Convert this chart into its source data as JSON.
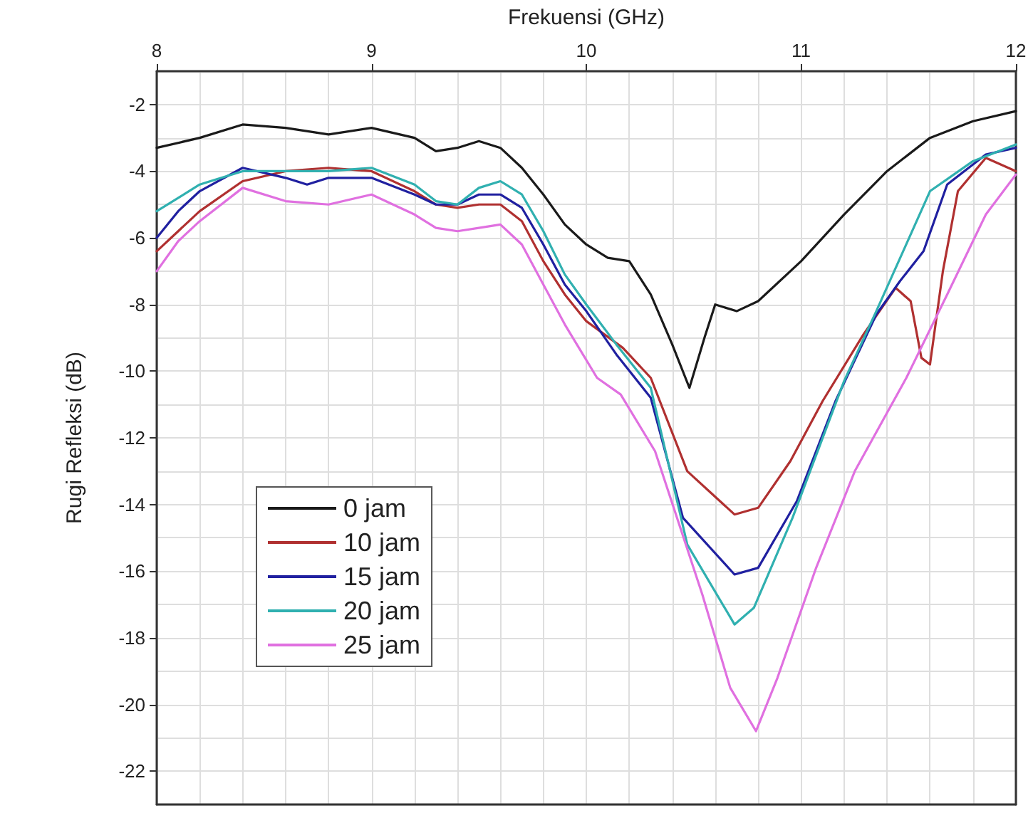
{
  "chart_data": {
    "type": "line",
    "xlabel": "Frekuensi (GHz)",
    "ylabel": "Rugi Refleksi (dB)",
    "xlim": [
      8,
      12
    ],
    "xticks": [
      8,
      9,
      10,
      11,
      12
    ],
    "ylim": [
      -23,
      -1
    ],
    "yticks": [
      -2,
      -4,
      -6,
      -8,
      -10,
      -12,
      -14,
      -16,
      -18,
      -20,
      -22
    ],
    "grid": true,
    "legend": "bottom left",
    "marker": "none",
    "line_style": "solid",
    "series": [
      {
        "name": "0 jam",
        "color": "#1a1a1a",
        "x": [
          8.0,
          8.2,
          8.4,
          8.6,
          8.8,
          9.0,
          9.2,
          9.3,
          9.4,
          9.5,
          9.6,
          9.7,
          9.8,
          9.9,
          10.0,
          10.1,
          10.2,
          10.3,
          10.4,
          10.48,
          10.55,
          10.6,
          10.7,
          10.8,
          11.0,
          11.2,
          11.4,
          11.6,
          11.8,
          12.0
        ],
        "values": [
          -3.3,
          -3.0,
          -2.6,
          -2.7,
          -2.9,
          -2.7,
          -3.0,
          -3.4,
          -3.3,
          -3.1,
          -3.3,
          -3.9,
          -4.7,
          -5.6,
          -6.2,
          -6.6,
          -6.7,
          -7.7,
          -9.2,
          -10.5,
          -9.0,
          -8.0,
          -8.2,
          -7.9,
          -6.7,
          -5.3,
          -4.0,
          -3.0,
          -2.5,
          -2.2
        ]
      },
      {
        "name": "10 jam",
        "color": "#b03030",
        "x": [
          8.0,
          8.1,
          8.2,
          8.4,
          8.6,
          8.8,
          9.0,
          9.2,
          9.3,
          9.4,
          9.5,
          9.6,
          9.7,
          9.8,
          9.9,
          10.0,
          10.17,
          10.3,
          10.47,
          10.69,
          10.8,
          10.95,
          11.1,
          11.29,
          11.44,
          11.51,
          11.56,
          11.6,
          11.66,
          11.73,
          11.86,
          12.0
        ],
        "values": [
          -6.4,
          -5.8,
          -5.2,
          -4.3,
          -4.0,
          -3.9,
          -4.0,
          -4.6,
          -5.0,
          -5.1,
          -5.0,
          -5.0,
          -5.5,
          -6.7,
          -7.7,
          -8.5,
          -9.3,
          -10.2,
          -13.0,
          -14.3,
          -14.1,
          -12.7,
          -10.9,
          -8.9,
          -7.5,
          -7.9,
          -9.6,
          -9.8,
          -7.0,
          -4.6,
          -3.6,
          -4.0
        ]
      },
      {
        "name": "15 jam",
        "color": "#2020a0",
        "x": [
          8.0,
          8.1,
          8.2,
          8.4,
          8.6,
          8.7,
          8.8,
          9.0,
          9.2,
          9.3,
          9.4,
          9.5,
          9.6,
          9.7,
          9.8,
          9.9,
          10.0,
          10.14,
          10.3,
          10.45,
          10.69,
          10.8,
          10.98,
          11.16,
          11.35,
          11.46,
          11.57,
          11.68,
          11.86,
          12.0
        ],
        "values": [
          -6.0,
          -5.2,
          -4.6,
          -3.9,
          -4.2,
          -4.4,
          -4.2,
          -4.2,
          -4.7,
          -5.0,
          -5.0,
          -4.7,
          -4.7,
          -5.1,
          -6.2,
          -7.4,
          -8.2,
          -9.5,
          -10.8,
          -14.4,
          -16.1,
          -15.9,
          -13.9,
          -10.9,
          -8.3,
          -7.3,
          -6.4,
          -4.4,
          -3.5,
          -3.3
        ]
      },
      {
        "name": "20 jam",
        "color": "#30b0b0",
        "x": [
          8.0,
          8.2,
          8.4,
          8.6,
          8.8,
          9.0,
          9.2,
          9.3,
          9.4,
          9.5,
          9.6,
          9.7,
          9.8,
          9.9,
          10.0,
          10.14,
          10.3,
          10.47,
          10.69,
          10.78,
          10.96,
          11.2,
          11.35,
          11.51,
          11.6,
          11.8,
          12.0
        ],
        "values": [
          -5.2,
          -4.4,
          -4.0,
          -4.0,
          -4.0,
          -3.9,
          -4.4,
          -4.9,
          -5.0,
          -4.5,
          -4.3,
          -4.7,
          -5.8,
          -7.1,
          -8.0,
          -9.2,
          -10.5,
          -15.2,
          -17.6,
          -17.1,
          -14.4,
          -10.3,
          -8.2,
          -5.9,
          -4.6,
          -3.7,
          -3.2
        ]
      },
      {
        "name": "25 jam",
        "color": "#e070e0",
        "x": [
          8.0,
          8.1,
          8.2,
          8.4,
          8.6,
          8.8,
          9.0,
          9.2,
          9.3,
          9.4,
          9.5,
          9.6,
          9.7,
          9.8,
          9.9,
          10.05,
          10.16,
          10.32,
          10.54,
          10.67,
          10.79,
          10.89,
          11.07,
          11.25,
          11.49,
          11.68,
          11.86,
          12.0
        ],
        "values": [
          -7.0,
          -6.1,
          -5.5,
          -4.5,
          -4.9,
          -5.0,
          -4.7,
          -5.3,
          -5.7,
          -5.8,
          -5.7,
          -5.6,
          -6.2,
          -7.4,
          -8.6,
          -10.2,
          -10.7,
          -12.4,
          -16.7,
          -19.5,
          -20.8,
          -19.2,
          -15.9,
          -13.0,
          -10.2,
          -7.7,
          -5.3,
          -4.1
        ]
      }
    ]
  }
}
